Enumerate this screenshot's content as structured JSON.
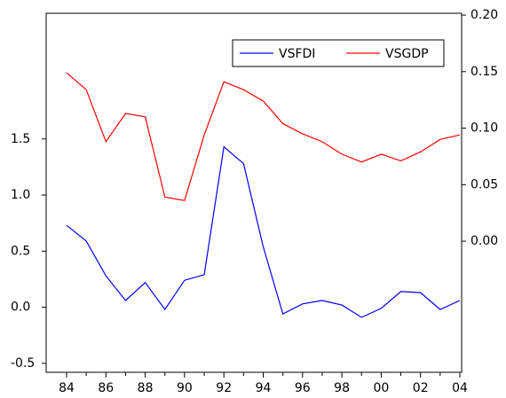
{
  "chart_data": {
    "type": "line",
    "categories": [
      "84",
      null,
      "86",
      null,
      "88",
      null,
      "90",
      null,
      "92",
      null,
      "94",
      null,
      "96",
      null,
      "98",
      null,
      "00",
      null,
      "02",
      null,
      "04"
    ],
    "series": [
      {
        "name": "VSFDI",
        "color": "#0000ff",
        "axis": "y",
        "values": [
          0.73,
          0.59,
          0.28,
          0.06,
          0.22,
          -0.02,
          0.24,
          0.29,
          1.43,
          1.28,
          0.54,
          -0.06,
          0.03,
          0.06,
          0.02,
          -0.09,
          -0.01,
          0.14,
          0.13,
          -0.02,
          0.06
        ]
      },
      {
        "name": "VSGDP",
        "color": "#ff0000",
        "axis": "y2",
        "values": [
          0.149,
          0.134,
          0.088,
          0.113,
          0.11,
          0.039,
          0.036,
          0.094,
          0.141,
          0.134,
          0.124,
          0.104,
          0.095,
          0.088,
          0.077,
          0.07,
          0.077,
          0.071,
          0.079,
          0.09,
          0.094
        ]
      }
    ],
    "ylim": [
      -0.58,
      2.62
    ],
    "yticks": [
      -0.5,
      {
        "value": 0,
        "label": "0.0"
      },
      0.5,
      {
        "value": 1,
        "label": "1.0"
      },
      1.5
    ],
    "y2lim": [
      -0.116,
      0.2016
    ],
    "y2ticks": [
      {
        "value": 0,
        "label": "0.00"
      },
      {
        "value": 0.05,
        "label": "0.05"
      },
      {
        "value": 0.1,
        "label": "0.10"
      },
      {
        "value": 0.15,
        "label": "0.15"
      },
      {
        "value": 0.2,
        "label": "0.20"
      }
    ]
  }
}
